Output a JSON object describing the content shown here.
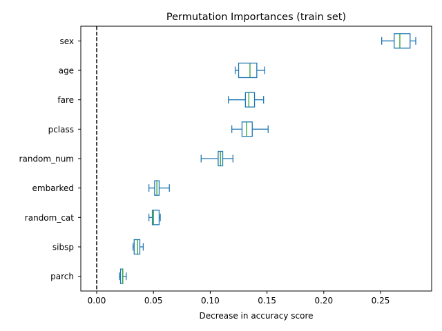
{
  "chart_data": {
    "type": "boxplot",
    "orientation": "horizontal",
    "title": "Permutation Importances (train set)",
    "xlabel": "Decrease in accuracy score",
    "ylabel": "",
    "xlim": [
      -0.014,
      0.295
    ],
    "xticks": [
      "0.00",
      "0.05",
      "0.10",
      "0.15",
      "0.20",
      "0.25"
    ],
    "grid": false,
    "reference_line": {
      "x": 0,
      "style": "dashed",
      "color": "#000000"
    },
    "colors": {
      "box": "#1f77b4",
      "median": "#2ca02c"
    },
    "categories": [
      "sex",
      "age",
      "fare",
      "pclass",
      "random_num",
      "embarked",
      "random_cat",
      "sibsp",
      "parch"
    ],
    "boxes": [
      {
        "label": "sex",
        "whislo": 0.251,
        "q1": 0.262,
        "med": 0.267,
        "q3": 0.276,
        "whishi": 0.281
      },
      {
        "label": "age",
        "whislo": 0.122,
        "q1": 0.125,
        "med": 0.135,
        "q3": 0.141,
        "whishi": 0.148
      },
      {
        "label": "fare",
        "whislo": 0.116,
        "q1": 0.131,
        "med": 0.134,
        "q3": 0.139,
        "whishi": 0.147
      },
      {
        "label": "pclass",
        "whislo": 0.119,
        "q1": 0.128,
        "med": 0.132,
        "q3": 0.137,
        "whishi": 0.151
      },
      {
        "label": "random_num",
        "whislo": 0.092,
        "q1": 0.107,
        "med": 0.109,
        "q3": 0.111,
        "whishi": 0.12
      },
      {
        "label": "embarked",
        "whislo": 0.046,
        "q1": 0.051,
        "med": 0.053,
        "q3": 0.055,
        "whishi": 0.064
      },
      {
        "label": "random_cat",
        "whislo": 0.046,
        "q1": 0.049,
        "med": 0.05,
        "q3": 0.055,
        "whishi": 0.056
      },
      {
        "label": "sibsp",
        "whislo": 0.032,
        "q1": 0.033,
        "med": 0.036,
        "q3": 0.038,
        "whishi": 0.041
      },
      {
        "label": "parch",
        "whislo": 0.02,
        "q1": 0.021,
        "med": 0.023,
        "q3": 0.023,
        "whishi": 0.026
      }
    ]
  }
}
